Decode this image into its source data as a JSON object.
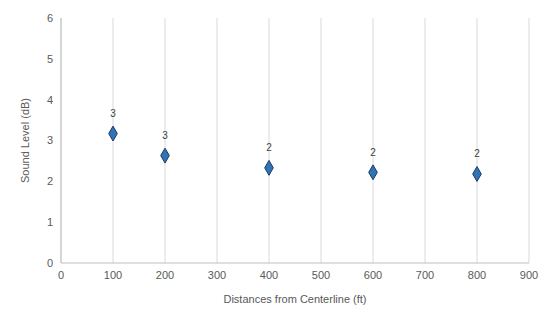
{
  "chart_data": {
    "type": "scatter",
    "x_label": "Distances from Centerline (ft)",
    "y_label": "Sound Level (dB)",
    "x": [
      100,
      200,
      400,
      600,
      800
    ],
    "values": [
      3.17,
      2.63,
      2.33,
      2.22,
      2.18
    ],
    "value_labels": [
      "3",
      "3",
      "2",
      "2",
      "2"
    ],
    "data_labels": true,
    "xlim": [
      0,
      900
    ],
    "xticks": [
      0,
      100,
      200,
      300,
      400,
      500,
      600,
      700,
      800,
      900
    ],
    "ylim": [
      0,
      6
    ],
    "yticks": [
      0,
      1,
      2,
      3,
      4,
      5,
      6
    ],
    "grid": "x",
    "color": "#2e75b6",
    "marker": "diamond"
  }
}
